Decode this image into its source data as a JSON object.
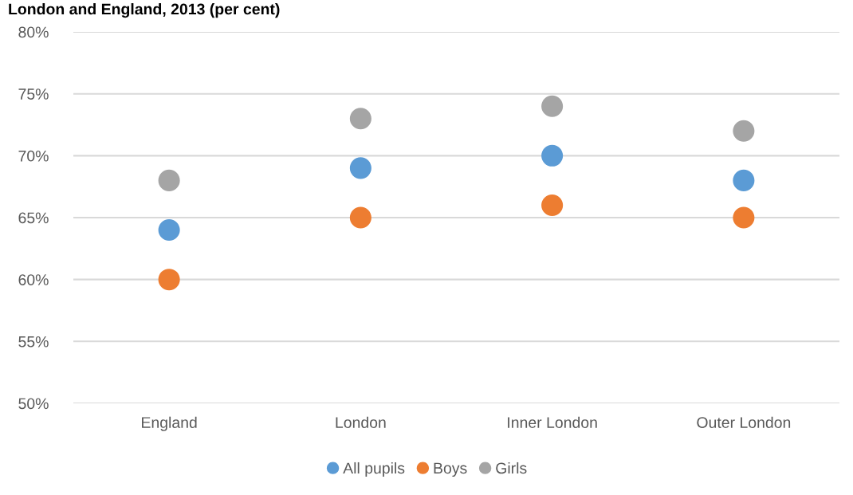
{
  "chart_data": {
    "type": "scatter",
    "title": "London and England, 2013 (per cent)",
    "categories": [
      "England",
      "London",
      "Inner London",
      "Outer London"
    ],
    "series": [
      {
        "name": "All pupils",
        "color": "#5b9bd5",
        "values": [
          64,
          69,
          70,
          68
        ]
      },
      {
        "name": "Boys",
        "color": "#ed7d31",
        "values": [
          60,
          65,
          66,
          65
        ]
      },
      {
        "name": "Girls",
        "color": "#a5a5a5",
        "values": [
          68,
          73,
          74,
          72
        ]
      }
    ],
    "ylim": [
      50,
      80
    ],
    "yticks": [
      {
        "value": 50,
        "label": "50%"
      },
      {
        "value": 55,
        "label": "55%"
      },
      {
        "value": 60,
        "label": "60%"
      },
      {
        "value": 65,
        "label": "65%"
      },
      {
        "value": 70,
        "label": "70%"
      },
      {
        "value": 75,
        "label": "75%"
      },
      {
        "value": 80,
        "label": "80%"
      }
    ],
    "grid": "y",
    "legend": "bottom",
    "marker": "circle"
  }
}
